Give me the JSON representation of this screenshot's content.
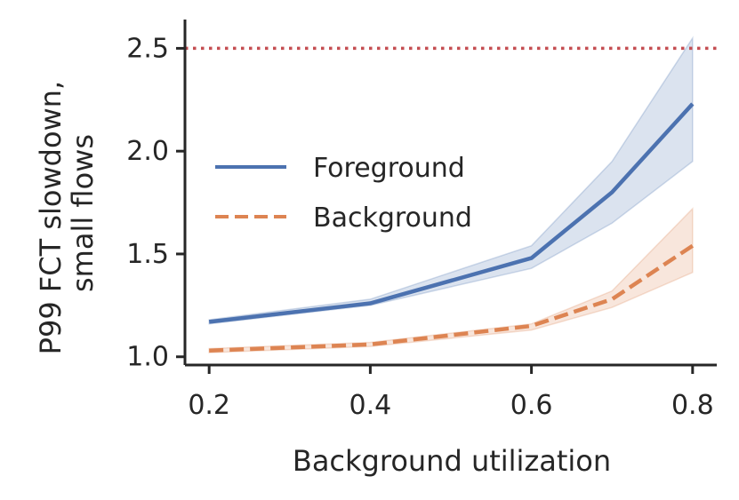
{
  "chart_data": {
    "type": "line",
    "title": "",
    "xlabel": "Background utilization",
    "ylabel_lines": [
      "P99 FCT slowdown,",
      "small flows"
    ],
    "x": [
      0.2,
      0.4,
      0.6,
      0.7,
      0.8
    ],
    "x_ticks": [
      0.2,
      0.4,
      0.6,
      0.8
    ],
    "x_tick_labels": [
      "0.2",
      "0.4",
      "0.6",
      "0.8"
    ],
    "y_ticks": [
      1.0,
      1.5,
      2.0,
      2.5
    ],
    "y_tick_labels": [
      "1.0",
      "1.5",
      "2.0",
      "2.5"
    ],
    "xlim": [
      0.17,
      0.83
    ],
    "ylim": [
      0.96,
      2.64
    ],
    "grid": false,
    "legend_position": "center-left",
    "reference_line": {
      "y": 2.5,
      "color": "#c44e52",
      "style": "dotted"
    },
    "series": [
      {
        "name": "Foreground",
        "color": "#4c72b0",
        "style": "solid",
        "values": [
          1.17,
          1.26,
          1.48,
          1.8,
          2.23
        ],
        "ci_lower": [
          1.16,
          1.25,
          1.43,
          1.65,
          1.95
        ],
        "ci_upper": [
          1.18,
          1.28,
          1.54,
          1.95,
          2.55
        ]
      },
      {
        "name": "Background",
        "color": "#dd8452",
        "style": "dashed",
        "values": [
          1.03,
          1.06,
          1.15,
          1.28,
          1.54
        ],
        "ci_lower": [
          1.02,
          1.05,
          1.13,
          1.24,
          1.41
        ],
        "ci_upper": [
          1.04,
          1.07,
          1.16,
          1.32,
          1.72
        ]
      }
    ]
  }
}
